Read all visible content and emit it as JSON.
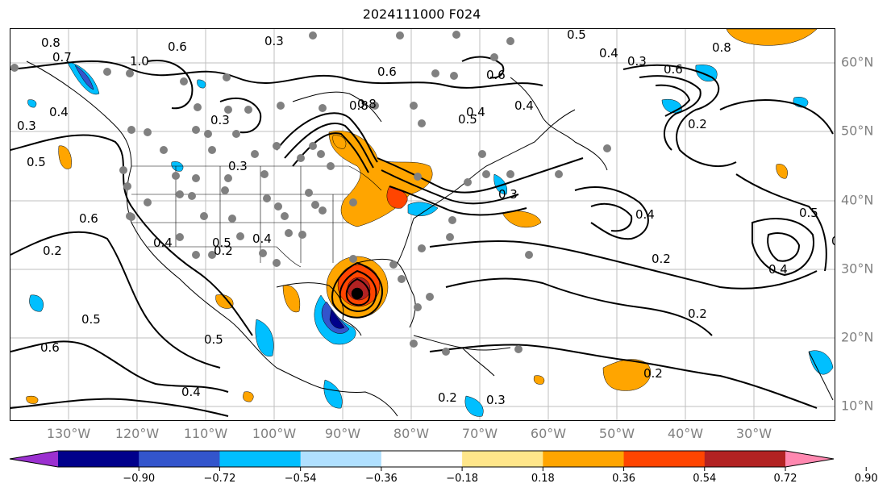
{
  "title": "2024111000 F024",
  "lon_labels": [
    "130°W",
    "120°W",
    "110°W",
    "100°W",
    "90°W",
    "80°W",
    "70°W",
    "60°W",
    "50°W",
    "40°W",
    "30°W"
  ],
  "lat_labels": [
    "60°N",
    "50°N",
    "40°N",
    "30°N",
    "20°N",
    "10°N"
  ],
  "colorbar": {
    "ticks": [
      "−0.90",
      "−0.72",
      "−0.54",
      "−0.36",
      "−0.18",
      "0.18",
      "0.36",
      "0.54",
      "0.72",
      "0.90"
    ],
    "colors": [
      "#9b30d0",
      "#00008b",
      "#3355cc",
      "#00bfff",
      "#b0e0ff",
      "#ffffff",
      "#ffe68a",
      "#ffa500",
      "#ff4500",
      "#b22222",
      "#ff88b0"
    ]
  },
  "contour_labels": [
    "0.8",
    "0.7",
    "0.6",
    "1.0",
    "0.4",
    "0.3",
    "0.5",
    "0.6",
    "0.8",
    "0.4",
    "0.6",
    "0.5",
    "0.4",
    "0.3",
    "0.8",
    "0.6",
    "0.5",
    "0.3",
    "0.4",
    "0.6",
    "0.2",
    "0.4",
    "0.5",
    "0.4",
    "0.3",
    "0.3",
    "0.2",
    "0.5",
    "0.6",
    "0.5",
    "0.4",
    "0.2",
    "0.3",
    "0.2",
    "0.4",
    "0.2",
    "0.5",
    "0.2",
    "0.2",
    "0.4",
    "0.7",
    "0.8",
    "0.3"
  ],
  "colors": {
    "land_line": "#000000",
    "grid": "#bfbfbf",
    "dots": "#808080"
  }
}
